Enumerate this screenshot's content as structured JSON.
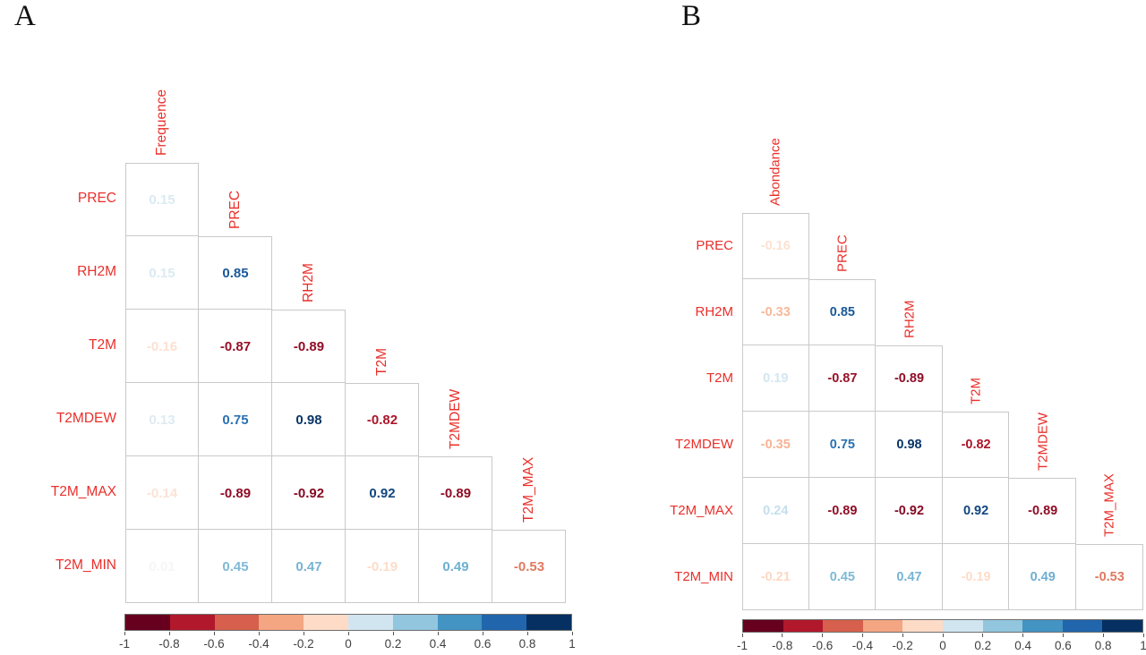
{
  "figure": {
    "background": "#FFFFFF",
    "description": "Two lower-triangular correlation matrices (corrplot style) with coefficient values colored on a red-blue diverging scale"
  },
  "colors": {
    "variable_label_red": "#E92F2A",
    "tick_text": "#404040",
    "grid_line": "#C9C9C9",
    "colorbar_border": "#6E6E6E",
    "panel_title_text": "#111111",
    "cell_background": "#FFFFFF",
    "rdbu_stops": [
      "#67001F",
      "#B2182B",
      "#D6604D",
      "#F4A582",
      "#FDDBC7",
      "#F7F7F7",
      "#D1E5F0",
      "#92C5DE",
      "#4393C3",
      "#2166AC",
      "#053061"
    ],
    "colorbar_segments": [
      "#67001F",
      "#B2182B",
      "#D6604D",
      "#F4A582",
      "#FDDBC7",
      "#D1E5F0",
      "#92C5DE",
      "#4393C3",
      "#2166AC",
      "#053061"
    ]
  },
  "chart_data": [
    {
      "type": "heatmap",
      "subtype": "lower-triangular correlation matrix, numbers colored by value",
      "panel": "A",
      "diagonal_labels": [
        "Frequence",
        "PREC",
        "RH2M",
        "T2M",
        "T2MDEW",
        "T2M_MAX"
      ],
      "row_labels": [
        "PREC",
        "RH2M",
        "T2M",
        "T2MDEW",
        "T2M_MAX",
        "T2M_MIN"
      ],
      "values": [
        [
          0.15
        ],
        [
          0.15,
          0.85
        ],
        [
          -0.16,
          -0.87,
          -0.89
        ],
        [
          0.13,
          0.75,
          0.98,
          -0.82
        ],
        [
          -0.14,
          -0.89,
          -0.92,
          0.92,
          -0.89
        ],
        [
          0.01,
          0.45,
          0.47,
          -0.19,
          0.49,
          -0.53
        ]
      ],
      "value_range": [
        -1,
        1
      ],
      "colorbar": {
        "position": "bottom",
        "segments": 10,
        "tick_labels": [
          "-1",
          "-0.8",
          "-0.6",
          "-0.4",
          "-0.2",
          "0",
          "0.2",
          "0.4",
          "0.6",
          "0.8",
          "1"
        ]
      }
    },
    {
      "type": "heatmap",
      "subtype": "lower-triangular correlation matrix, numbers colored by value",
      "panel": "B",
      "diagonal_labels": [
        "Abondance",
        "PREC",
        "RH2M",
        "T2M",
        "T2MDEW",
        "T2M_MAX"
      ],
      "row_labels": [
        "PREC",
        "RH2M",
        "T2M",
        "T2MDEW",
        "T2M_MAX",
        "T2M_MIN"
      ],
      "values": [
        [
          -0.16
        ],
        [
          -0.33,
          0.85
        ],
        [
          0.19,
          -0.87,
          -0.89
        ],
        [
          -0.35,
          0.75,
          0.98,
          -0.82
        ],
        [
          0.24,
          -0.89,
          -0.92,
          0.92,
          -0.89
        ],
        [
          -0.21,
          0.45,
          0.47,
          -0.19,
          0.49,
          -0.53
        ]
      ],
      "value_range": [
        -1,
        1
      ],
      "colorbar": {
        "position": "bottom",
        "segments": 10,
        "tick_labels": [
          "-1",
          "-0.8",
          "-0.6",
          "-0.4",
          "-0.2",
          "0",
          "0.2",
          "0.4",
          "0.6",
          "0.8",
          "1"
        ]
      }
    }
  ]
}
